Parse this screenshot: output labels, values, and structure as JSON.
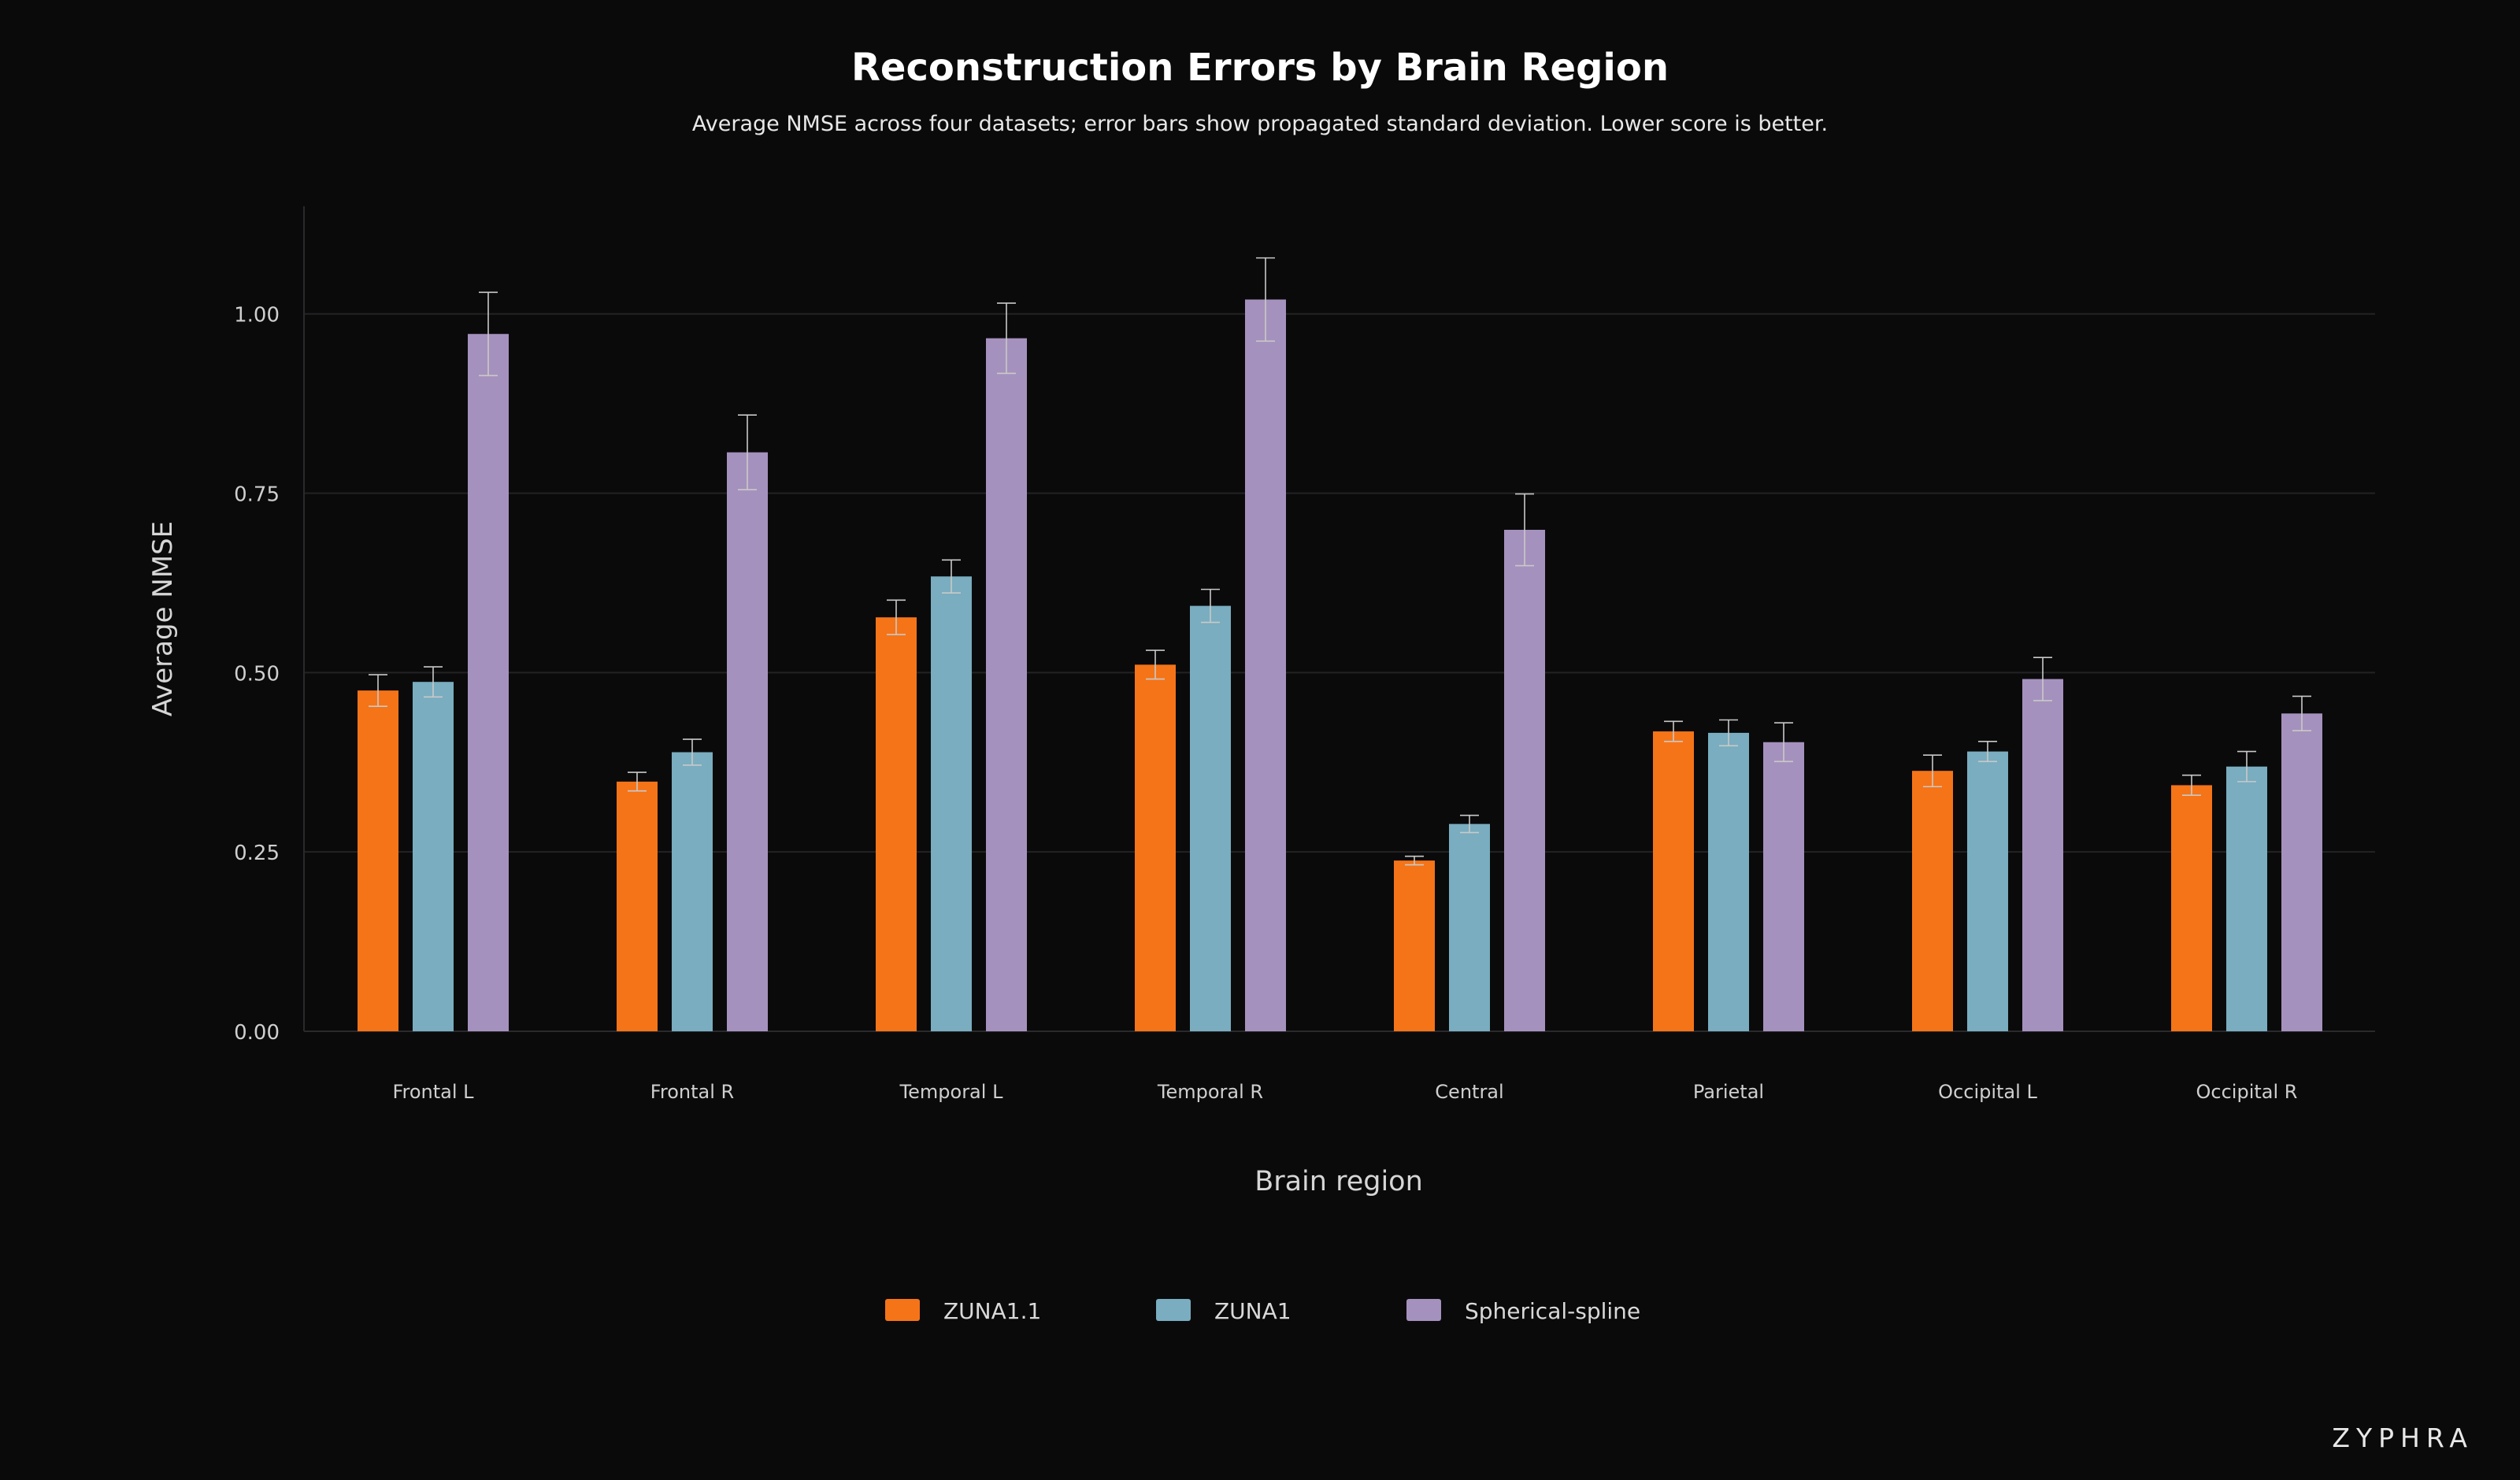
{
  "brand": "ZYPHRA",
  "chart_data": {
    "type": "bar",
    "title": "Reconstruction Errors by Brain Region",
    "subtitle": "Average NMSE across four datasets; error bars show propagated standard deviation. Lower score is better.",
    "xlabel": "Brain region",
    "ylabel": "Average NMSE",
    "ylim": [
      0,
      1.15
    ],
    "yticks": [
      0.0,
      0.25,
      0.5,
      0.75,
      1.0
    ],
    "ytick_labels": [
      "0.00",
      "0.25",
      "0.50",
      "0.75",
      "1.00"
    ],
    "grid": true,
    "legend_position": "bottom-center",
    "categories": [
      "Frontal L",
      "Frontal R",
      "Temporal L",
      "Temporal R",
      "Central",
      "Parietal",
      "Occipital L",
      "Occipital R"
    ],
    "series": [
      {
        "name": "ZUNA1.1",
        "color": "#f57418",
        "values": [
          0.475,
          0.348,
          0.577,
          0.511,
          0.238,
          0.418,
          0.363,
          0.343
        ],
        "errors": [
          0.022,
          0.013,
          0.024,
          0.02,
          0.006,
          0.014,
          0.022,
          0.014
        ]
      },
      {
        "name": "ZUNA1",
        "color": "#79adbf",
        "values": [
          0.487,
          0.389,
          0.634,
          0.593,
          0.289,
          0.416,
          0.39,
          0.369
        ],
        "errors": [
          0.021,
          0.018,
          0.023,
          0.023,
          0.012,
          0.018,
          0.014,
          0.021
        ]
      },
      {
        "name": "Spherical-spline",
        "color": "#a591bd",
        "values": [
          0.972,
          0.807,
          0.966,
          1.02,
          0.699,
          0.403,
          0.491,
          0.443
        ],
        "errors": [
          0.058,
          0.052,
          0.049,
          0.058,
          0.05,
          0.027,
          0.03,
          0.024
        ]
      }
    ]
  }
}
